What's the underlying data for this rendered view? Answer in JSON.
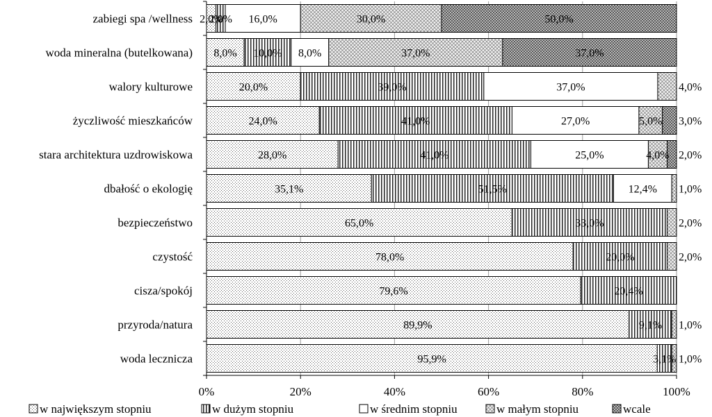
{
  "chart_data": {
    "type": "bar",
    "orientation": "horizontal",
    "stacked": true,
    "percent_stacked": true,
    "categories": [
      "zabiegi spa /wellness",
      "woda mineralna (butelkowana)",
      "walory kulturowe",
      "życzliwość mieszkańców",
      "stara architektura uzdrowiskowa",
      "dbałość o ekologię",
      "bezpieczeństwo",
      "czystość",
      "cisza/spokój",
      "przyroda/natura",
      "woda lecznicza"
    ],
    "series": [
      {
        "name": "w największym stopniu",
        "pattern": "dots",
        "values": [
          2.0,
          8.0,
          20.0,
          24.0,
          28.0,
          35.1,
          65.0,
          78.0,
          79.6,
          89.9,
          95.9
        ],
        "labels": [
          "2,0%",
          "8,0%",
          "20,0%",
          "24,0%",
          "28,0%",
          "35,1%",
          "65,0%",
          "78,0%",
          "79,6%",
          "89,9%",
          "95,9%"
        ]
      },
      {
        "name": "w dużym stopniu",
        "pattern": "vertical-lines",
        "values": [
          2.0,
          10.0,
          39.0,
          41.0,
          41.0,
          51.5,
          33.0,
          20.0,
          20.4,
          9.1,
          3.1
        ],
        "labels": [
          "2,0%",
          "10,0%",
          "39,0%",
          "41,0%",
          "41,0%",
          "51,5%",
          "33,0%",
          "20,0%",
          "20,4%",
          "9,1%",
          "3,1%"
        ]
      },
      {
        "name": "w średnim stopniu",
        "pattern": "none",
        "values": [
          16.0,
          8.0,
          37.0,
          27.0,
          25.0,
          12.4,
          0,
          0,
          0,
          0,
          0
        ],
        "labels": [
          "16,0%",
          "8,0%",
          "37,0%",
          "27,0%",
          "25,0%",
          "12,4%",
          "",
          "",
          "",
          "",
          ""
        ]
      },
      {
        "name": "w małym stopniu",
        "pattern": "crosshatch-light",
        "values": [
          30.0,
          37.0,
          4.0,
          5.0,
          4.0,
          1.0,
          2.0,
          2.0,
          0,
          1.0,
          1.0
        ],
        "labels": [
          "30,0%",
          "37,0%",
          "4,0%",
          "5,0%",
          "4,0%",
          "1,0%",
          "2,0%",
          "2,0%",
          "",
          "1,0%",
          "1,0%"
        ]
      },
      {
        "name": "wcale",
        "pattern": "crosshatch-dense",
        "values": [
          50.0,
          37.0,
          0,
          3.0,
          2.0,
          0,
          0,
          0,
          0,
          0,
          0
        ],
        "labels": [
          "50,0%",
          "37,0%",
          "",
          "3,0%",
          "2,0%",
          "",
          "",
          "",
          "",
          "",
          ""
        ]
      }
    ],
    "xaxis": {
      "min": 0,
      "max": 100,
      "ticks": [
        "0%",
        "20%",
        "40%",
        "60%",
        "80%",
        "100%"
      ]
    },
    "xlabel": "",
    "ylabel": "",
    "title": "",
    "grid": true,
    "legend": {
      "position": "bottom"
    }
  }
}
